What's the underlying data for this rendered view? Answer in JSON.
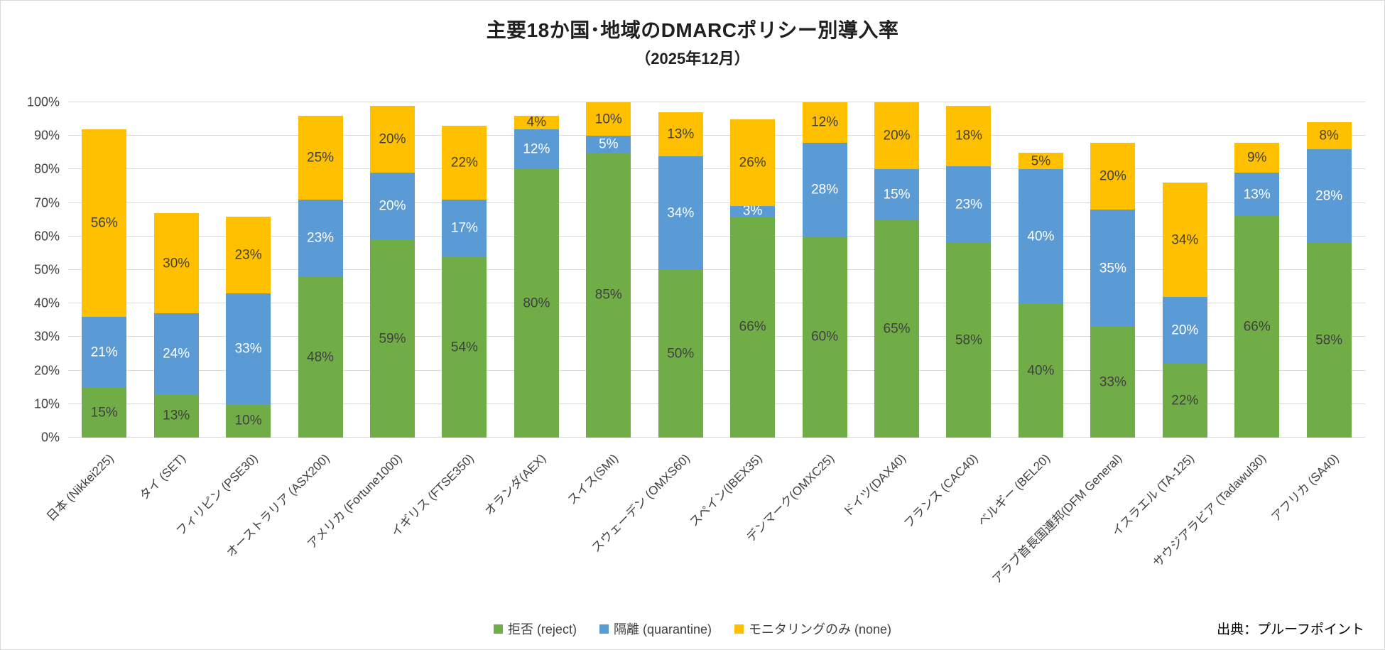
{
  "chart_data": {
    "type": "bar",
    "stacked": true,
    "title": "主要18か国･地域のDMARCポリシー別導入率",
    "subtitle": "（2025年12月）",
    "source": "出典：プルーフポイント",
    "categories": [
      "日本 (Nikkei225)",
      "タイ (SET)",
      "フィリピン (PSE30)",
      "オーストラリア (ASX200)",
      "アメリカ (Fortune1000)",
      "イギリス (FTSE350)",
      "オランダ(AEX)",
      "スイス(SMI)",
      "スウェーデン (OMXS60)",
      "スペイン(IBEX35)",
      "デンマーク(OMXC25)",
      "ドイツ(DAX40)",
      "フランス (CAC40)",
      "ベルギー (BEL20)",
      "アラブ首長国連邦(DFM General)",
      "イスラエル (TA-125)",
      "サウジアラビア (Tadawul30)",
      "アフリカ (SA40)"
    ],
    "series": [
      {
        "name": "拒否 (reject)",
        "color": "#70AD47",
        "label_color": "#404040",
        "values": [
          15,
          13,
          10,
          48,
          59,
          54,
          80,
          85,
          50,
          66,
          60,
          65,
          58,
          40,
          33,
          22,
          66,
          58
        ]
      },
      {
        "name": "隔離 (quarantine)",
        "color": "#5B9BD5",
        "label_color": "#FFFFFF",
        "values": [
          21,
          24,
          33,
          23,
          20,
          17,
          12,
          5,
          34,
          3,
          28,
          15,
          23,
          40,
          35,
          20,
          13,
          28
        ]
      },
      {
        "name": "モニタリングのみ (none)",
        "color": "#FFC000",
        "label_color": "#404040",
        "values": [
          56,
          30,
          23,
          25,
          20,
          22,
          4,
          10,
          13,
          26,
          12,
          20,
          18,
          5,
          20,
          34,
          9,
          8
        ]
      }
    ],
    "y_ticks": [
      "0%",
      "10%",
      "20%",
      "30%",
      "40%",
      "50%",
      "60%",
      "70%",
      "80%",
      "90%",
      "100%"
    ],
    "ylim": [
      0,
      100
    ],
    "grid": true,
    "legend_position": "bottom",
    "gridline_color": "#d9d9d9"
  }
}
